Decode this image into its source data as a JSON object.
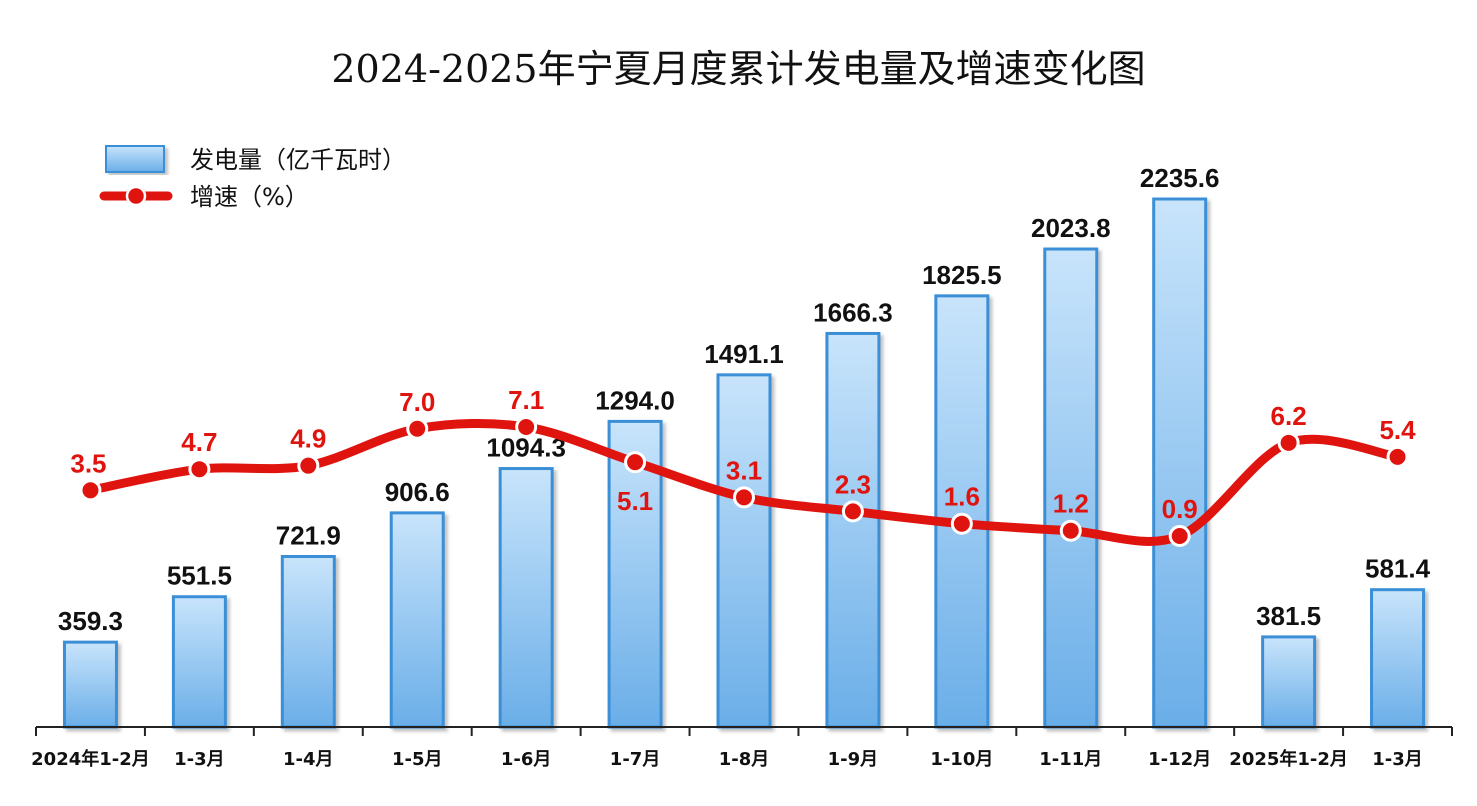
{
  "chart_data": {
    "type": "bar",
    "title": "2024-2025年宁夏月度累计发电量及增速变化图",
    "categories": [
      "2024年1-2月",
      "1-3月",
      "1-4月",
      "1-5月",
      "1-6月",
      "1-7月",
      "1-8月",
      "1-9月",
      "1-10月",
      "1-11月",
      "1-12月",
      "2025年1-2月",
      "1-3月"
    ],
    "series": [
      {
        "name": "发电量（亿千瓦时）",
        "type": "bar",
        "values": [
          359.3,
          551.5,
          721.9,
          906.6,
          1094.3,
          1294.0,
          1491.1,
          1666.3,
          1825.5,
          2023.8,
          2235.6,
          381.5,
          581.4
        ],
        "labels": [
          "359.3",
          "551.5",
          "721.9",
          "906.6",
          "1094.3",
          "1294.0",
          "1491.1",
          "1666.3",
          "1825.5",
          "2023.8",
          "2235.6",
          "381.5",
          "581.4"
        ]
      },
      {
        "name": "增速（%）",
        "type": "line",
        "values": [
          3.5,
          4.7,
          4.9,
          7.0,
          7.1,
          5.1,
          3.1,
          2.3,
          1.6,
          1.2,
          0.9,
          6.2,
          5.4
        ],
        "labels": [
          "3.5",
          "4.7",
          "4.9",
          "7.0",
          "7.1",
          "5.1",
          "3.1",
          "2.3",
          "1.6",
          "1.2",
          "0.9",
          "6.2",
          "5.4"
        ]
      }
    ],
    "legend_position": "top-left",
    "grid": false,
    "colors": {
      "bar_fill_top": "#c8e4fb",
      "bar_fill_bottom": "#6aaee8",
      "bar_border": "#3a8fd6",
      "line": "#e0140f"
    }
  }
}
